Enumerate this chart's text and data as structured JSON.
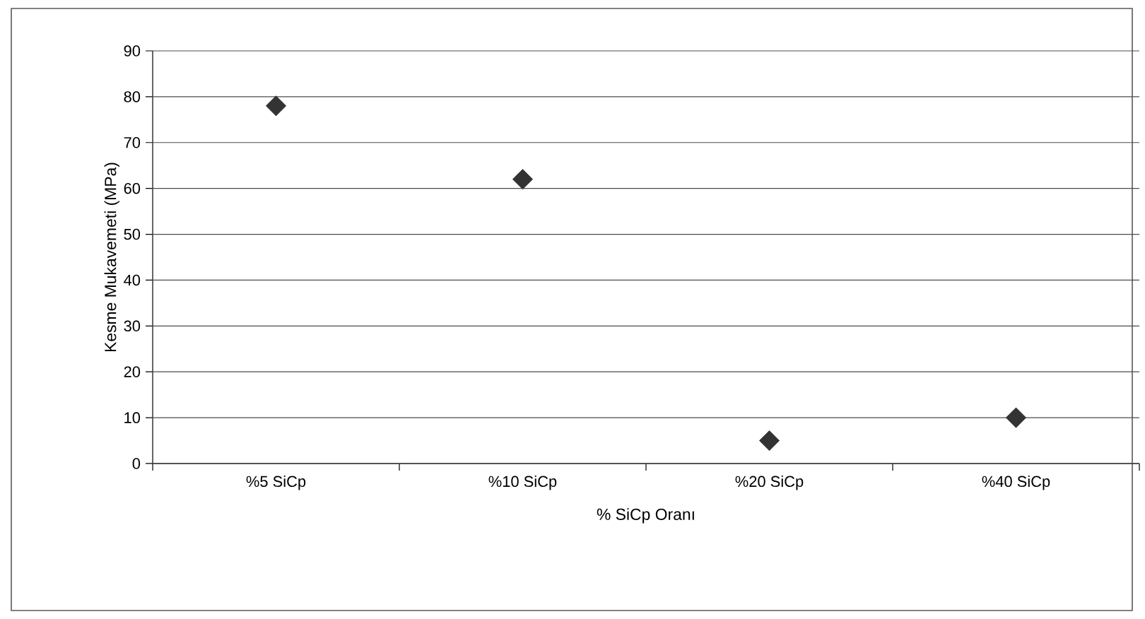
{
  "chart_data": {
    "type": "scatter",
    "xlabel": "% SiCp Oranı",
    "ylabel": "Kesme Mukavemeti (MPa)",
    "categories": [
      "%5 SiCp",
      "%10 SiCp",
      "%20 SiCp",
      "%40 SiCp"
    ],
    "series": [
      {
        "color": "#333333",
        "values": [
          78,
          62,
          5,
          10
        ]
      }
    ],
    "ylim": [
      0,
      90
    ],
    "yticks": [
      0,
      10,
      20,
      30,
      40,
      50,
      60,
      70,
      80,
      90
    ],
    "grid": "y",
    "marker": "diamond"
  }
}
